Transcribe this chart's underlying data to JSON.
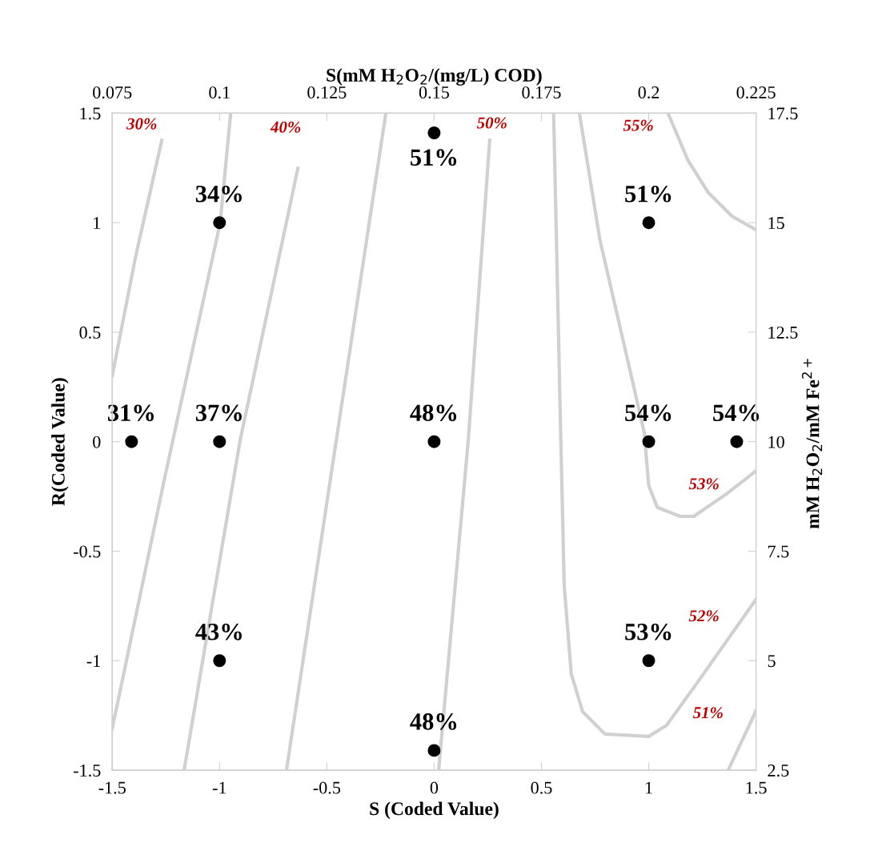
{
  "chart_data": {
    "type": "scatter",
    "xlabel": "S (Coded Value)",
    "ylabel": "R(Coded Value)",
    "x2label": "S(mM H$_{2}$O$_{2}$/(mg/L) COD)",
    "y2label": "mM H$_{2}$O$_{2}$/mM Fe$^{2+}$",
    "xlim": [
      -1.5,
      1.5
    ],
    "xticks": [
      -1.5,
      -1,
      -0.5,
      0,
      0.5,
      1,
      1.5
    ],
    "ylim": [
      -1.5,
      1.5
    ],
    "yticks": [
      -1.5,
      -1,
      -0.5,
      0,
      0.5,
      1,
      1.5
    ],
    "x2lim": [
      0.075,
      0.225
    ],
    "x2ticks": [
      0.075,
      0.1,
      0.125,
      0.15,
      0.175,
      0.2,
      0.225
    ],
    "y2lim": [
      2.5,
      17.5
    ],
    "y2ticks": [
      2.5,
      5,
      7.5,
      10,
      12.5,
      15,
      17.5
    ],
    "grid": false,
    "series": [
      {
        "type": "line",
        "color": "#d0d0d0",
        "x": [
          -1.5,
          -1.39,
          -1.269
        ],
        "values": [
          0.3,
          0.85,
          1.376
        ]
      },
      {
        "type": "line",
        "color": "#d0d0d0",
        "x": [
          -1.5,
          -1.258,
          -0.997,
          -0.948
        ],
        "values": [
          -1.31,
          -0.177,
          1.0,
          1.5
        ]
      },
      {
        "type": "line",
        "color": "#d0d0d0",
        "x": [
          -1.165,
          -0.904,
          -0.635
        ],
        "values": [
          -1.5,
          0.006,
          1.248
        ]
      },
      {
        "type": "line",
        "color": "#d0d0d0",
        "x": [
          -0.688,
          -0.456,
          -0.225
        ],
        "values": [
          -1.5,
          0.006,
          1.5
        ]
      },
      {
        "type": "line",
        "color": "#d0d0d0",
        "x": [
          0.021,
          0.159,
          0.259
        ],
        "values": [
          -1.5,
          0.006,
          1.376
        ]
      },
      {
        "type": "line",
        "color": "#d0d0d0",
        "x": [
          0.557,
          0.587,
          0.606,
          0.639,
          0.692,
          0.796,
          1.0,
          1.083,
          1.21,
          1.5
        ],
        "values": [
          1.5,
          0.155,
          -0.656,
          -1.061,
          -1.233,
          -1.335,
          -1.346,
          -1.295,
          -1.123,
          -0.72
        ]
      },
      {
        "type": "line",
        "color": "#d0d0d0",
        "x": [
          0.677,
          0.773,
          0.885,
          0.979,
          1.0,
          1.04,
          1.146,
          1.21,
          1.36,
          1.5
        ],
        "values": [
          1.5,
          0.919,
          0.444,
          0.042,
          -0.2,
          -0.3,
          -0.341,
          -0.341,
          -0.24,
          -0.133
        ]
      },
      {
        "type": "line",
        "color": "#d0d0d0",
        "x": [
          1.09,
          1.183,
          1.277,
          1.389,
          1.5
        ],
        "values": [
          1.5,
          1.284,
          1.138,
          1.029,
          0.967
        ]
      },
      {
        "type": "line",
        "color": "#d0d0d0",
        "x": [
          1.37,
          1.5
        ],
        "values": [
          -1.5,
          -1.229
        ]
      },
      {
        "color": "#000000",
        "marker": "circle",
        "x": [
          -1.41,
          -1,
          -1,
          -1,
          0,
          0,
          0,
          1,
          1,
          1.41,
          1
        ],
        "values": [
          0,
          0,
          1,
          -1,
          1.41,
          0,
          -1.41,
          1,
          0,
          0,
          -1
        ]
      }
    ],
    "annotations": [
      {
        "text": "31%",
        "x": -1.41,
        "y": 0
      },
      {
        "text": "37%",
        "x": -1,
        "y": 0
      },
      {
        "text": "34%",
        "x": -1,
        "y": 1
      },
      {
        "text": "43%",
        "x": -1,
        "y": -1
      },
      {
        "text": "51%",
        "x": 0,
        "y": 1.41
      },
      {
        "text": "48%",
        "x": 0,
        "y": 0
      },
      {
        "text": "48%",
        "x": 0,
        "y": -1.41
      },
      {
        "text": "51%",
        "x": 1,
        "y": 1
      },
      {
        "text": "54%",
        "x": 1,
        "y": 0
      },
      {
        "text": "54%",
        "x": 1.41,
        "y": 0
      },
      {
        "text": "53%",
        "x": 1,
        "y": -1
      },
      {
        "text": "30%",
        "x": -1.362,
        "y": 1.445
      },
      {
        "text": "40%",
        "x": -0.691,
        "y": 1.43
      },
      {
        "text": "50%",
        "x": 0.27,
        "y": 1.449
      },
      {
        "text": "55%",
        "x": 0.952,
        "y": 1.438
      },
      {
        "text": "53%",
        "x": 1.258,
        "y": -0.199
      },
      {
        "text": "52%",
        "x": 1.258,
        "y": -0.802
      },
      {
        "text": "51%",
        "x": 1.277,
        "y": -1.244
      }
    ]
  }
}
